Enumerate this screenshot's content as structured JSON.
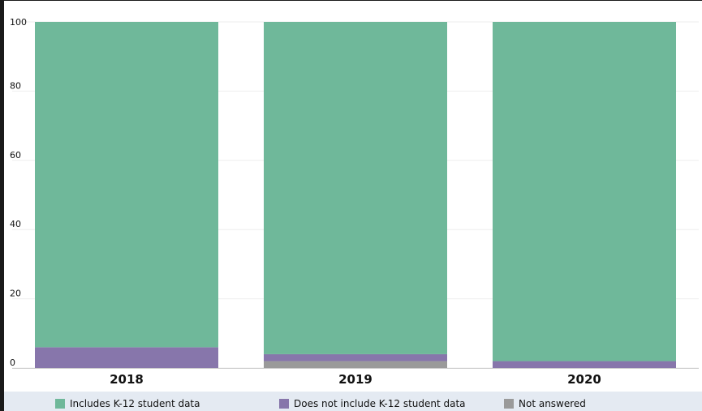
{
  "chart_data": {
    "type": "bar",
    "stacked": true,
    "categories": [
      "2018",
      "2019",
      "2020"
    ],
    "series": [
      {
        "name": "Not answered",
        "values": [
          0,
          2,
          0
        ],
        "color": "#9a9a9a"
      },
      {
        "name": "Does not include K-12 student data",
        "values": [
          6,
          2,
          2
        ],
        "color": "#8776ab"
      },
      {
        "name": "Includes K-12 student data",
        "values": [
          94,
          96,
          98
        ],
        "color": "#6fb89a"
      }
    ],
    "yticks": [
      "0",
      "20",
      "40",
      "60",
      "80",
      "100"
    ],
    "ylim": [
      0,
      100
    ],
    "grid": true,
    "legend_position": "bottom"
  },
  "legend": [
    {
      "label": "Includes K-12 student data",
      "color": "#6fb89a"
    },
    {
      "label": "Does not include K-12 student data",
      "color": "#8776ab"
    },
    {
      "label": "Not answered",
      "color": "#9a9a9a"
    }
  ]
}
